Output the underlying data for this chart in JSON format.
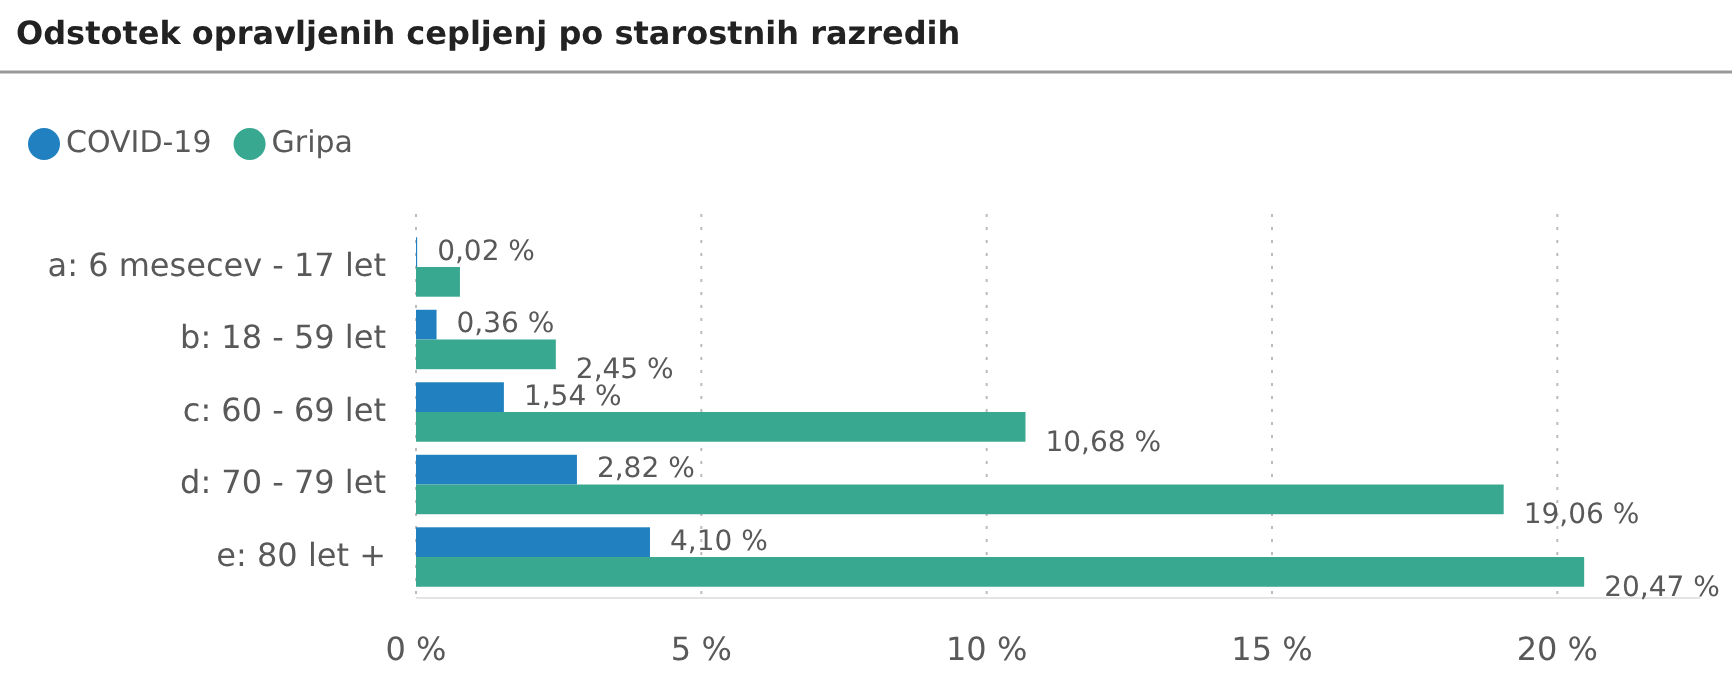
{
  "chart_data": {
    "type": "bar",
    "orientation": "horizontal",
    "title": "Odstotek opravljenih cepljenj po starostnih razredih",
    "categories": [
      "a: 6 mesecev - 17 let",
      "b: 18 - 59 let",
      "c: 60 - 69 let",
      "d: 70 - 79 let",
      "e: 80 let +"
    ],
    "series": [
      {
        "name": "COVID-19",
        "color": "#2180c0",
        "values": [
          0.02,
          0.36,
          1.54,
          2.82,
          4.1
        ],
        "value_labels": [
          "0,02 %",
          "0,36 %",
          "1,54 %",
          "2,82 %",
          "4,10 %"
        ]
      },
      {
        "name": "Gripa",
        "color": "#38a890",
        "values": [
          0.77,
          2.45,
          10.68,
          19.06,
          20.47
        ],
        "value_labels": [
          null,
          "2,45 %",
          "10,68 %",
          "19,06 %",
          "20,47 %"
        ]
      }
    ],
    "xlim": [
      0,
      22.5
    ],
    "xticks": [
      {
        "value": 0,
        "label": "0 %"
      },
      {
        "value": 5,
        "label": "5 %"
      },
      {
        "value": 10,
        "label": "10 %"
      },
      {
        "value": 15,
        "label": "15 %"
      },
      {
        "value": 20,
        "label": "20 %"
      }
    ],
    "grid": "x",
    "legend": "top left"
  }
}
